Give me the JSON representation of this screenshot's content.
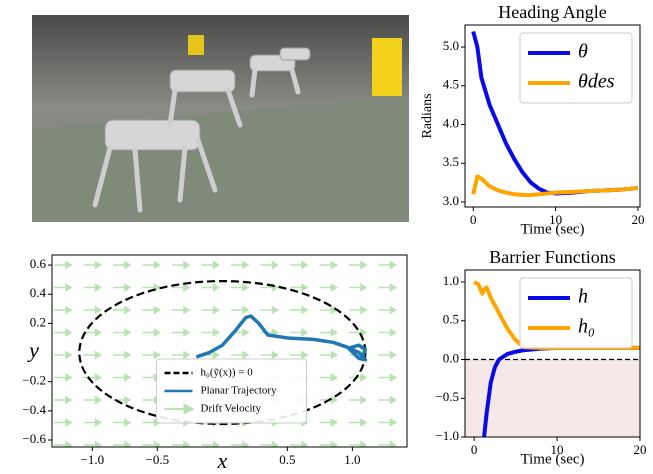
{
  "chart_data": [
    {
      "type": "line",
      "title": "Heading Angle",
      "xlabel": "Time (sec)",
      "ylabel": "Radians",
      "x": [
        0,
        0.5,
        1,
        2,
        3,
        4,
        5,
        6,
        7,
        8,
        9,
        10,
        12,
        14,
        16,
        18,
        20
      ],
      "series": [
        {
          "name": "θ",
          "color": "#0a0ae6",
          "values": [
            5.2,
            5.0,
            4.6,
            4.25,
            4.0,
            3.75,
            3.55,
            3.38,
            3.25,
            3.17,
            3.12,
            3.11,
            3.12,
            3.14,
            3.15,
            3.16,
            3.18
          ]
        },
        {
          "name": "θdes",
          "color": "#ffa500",
          "values": [
            3.1,
            3.33,
            3.3,
            3.2,
            3.15,
            3.12,
            3.1,
            3.09,
            3.09,
            3.1,
            3.11,
            3.12,
            3.13,
            3.14,
            3.15,
            3.16,
            3.18
          ]
        }
      ],
      "xlim": [
        -1,
        20.25
      ],
      "ylim": [
        2.935,
        5.284
      ],
      "xticks": [
        0,
        10,
        20
      ],
      "yticks": [
        {
          "value": 3,
          "label": "3.0"
        },
        3.5,
        {
          "value": 4,
          "label": "4.0"
        },
        4.5,
        {
          "value": 5,
          "label": "5.0"
        }
      ],
      "legend": "upper right",
      "grid": false
    },
    {
      "type": "line",
      "title": "Barrier Functions",
      "xlabel": "Time (sec)",
      "x": [
        0,
        0.5,
        1,
        1.2,
        1.5,
        2,
        2.5,
        3,
        4,
        5,
        6,
        8,
        10,
        14,
        20
      ],
      "series": [
        {
          "name": "h",
          "color": "#0a0ae6",
          "values": [
            null,
            null,
            null,
            -1,
            -0.7,
            -0.3,
            -0.1,
            0,
            0.07,
            0.1,
            0.12,
            0.14,
            0.15,
            0.15,
            0.15
          ]
        },
        {
          "name": "h₀",
          "color": "#ffa500",
          "values": [
            1.0,
            0.97,
            0.85,
            0.9,
            0.93,
            0.8,
            0.7,
            0.6,
            0.4,
            0.25,
            0.16,
            0.15,
            0.15,
            0.15,
            0.15
          ]
        }
      ],
      "hline": 0,
      "xlim": [
        -1.1,
        20
      ],
      "ylim": [
        -1,
        1.155
      ],
      "xticks": [
        0,
        10,
        20
      ],
      "yticks": [
        {
          "value": -1,
          "label": "−1.0"
        },
        {
          "value": -0.5,
          "label": "−0.5"
        },
        {
          "value": 0,
          "label": "0.0"
        },
        0.5,
        {
          "value": 1,
          "label": "1.0"
        }
      ],
      "legend": "upper right",
      "grid": false
    },
    {
      "type": "line",
      "xlabel": "x",
      "ylabel": "y",
      "x": [
        -0.2,
        -0.1,
        0,
        0.1,
        0.18,
        0.22,
        0.28,
        0.35,
        0.5,
        0.7,
        0.85,
        0.95,
        1.05,
        1.1,
        1.05,
        0.97,
        1.05,
        1.1,
        1.08
      ],
      "series": [
        {
          "name": "Planar Trajectory",
          "color": "#1f77b4",
          "values": [
            -0.03,
            0.0,
            0.05,
            0.15,
            0.24,
            0.25,
            0.2,
            0.12,
            0.1,
            0.09,
            0.07,
            0.04,
            0.0,
            -0.05,
            -0.04,
            0.03,
            0.05,
            0.02,
            -0.02
          ]
        }
      ],
      "ellipse": {
        "name": "h₀(ỹ(x)) = 0",
        "color": "#000000",
        "cx": 0,
        "cy": 0,
        "rx": 1.1,
        "ry": 0.49
      },
      "drift": {
        "name": "Drift Velocity",
        "color": "#b9e3b2"
      },
      "xlim": [
        -1.31,
        1.42
      ],
      "ylim": [
        -0.648,
        0.669
      ],
      "xticks": [
        {
          "value": -1,
          "label": "−1.0"
        },
        {
          "value": -0.5,
          "label": "−0.5"
        },
        0.5,
        {
          "value": 1,
          "label": "1.0"
        }
      ],
      "yticks": [
        {
          "value": -0.6,
          "label": "−0.6"
        },
        {
          "value": -0.4,
          "label": "−0.4"
        },
        {
          "value": -0.2,
          "label": "−0.2"
        },
        0.2,
        0.4,
        0.6
      ],
      "legend": "lower center",
      "grid": false
    }
  ]
}
